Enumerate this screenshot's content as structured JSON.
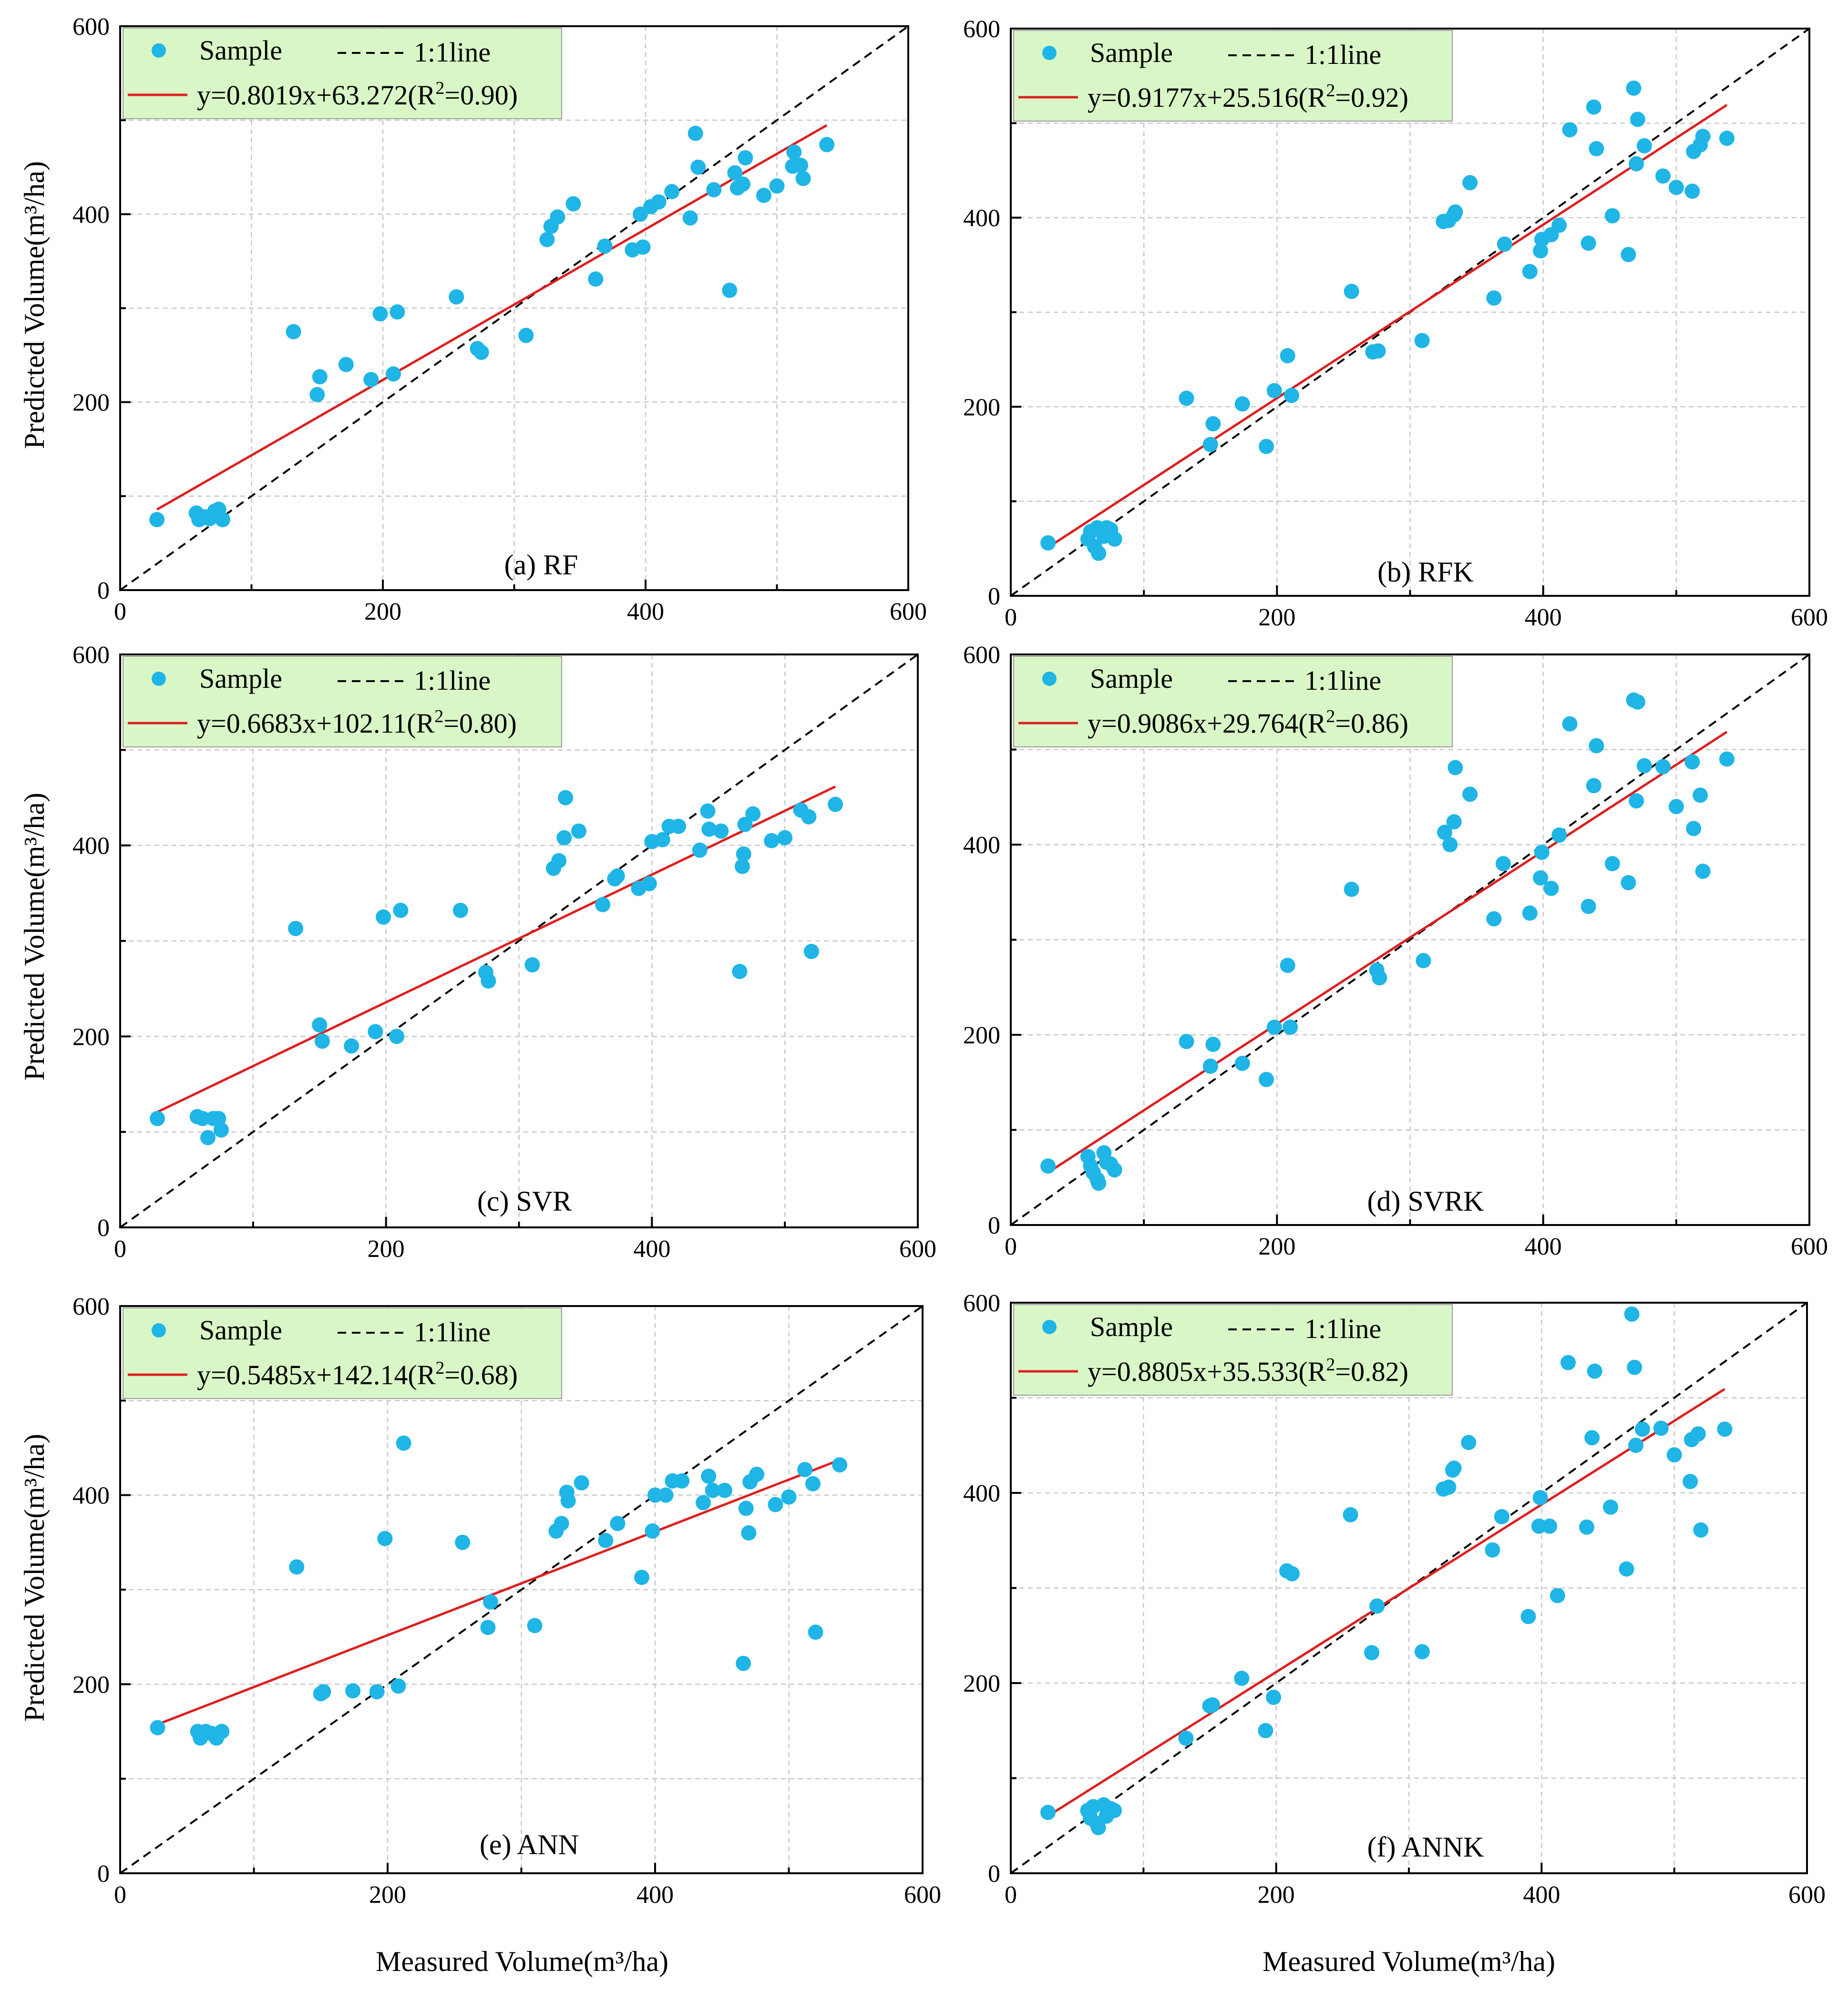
{
  "figure": {
    "x_axis_title": "Measured Volume(m³/ha)",
    "y_axis_title": "Predicted Volume(m³/ha)"
  },
  "colors": {
    "points": "#1fb5e6",
    "fit_line": "#dd1f1f",
    "legend_bg": "#d9f7c6"
  },
  "chart_data": [
    {
      "type": "scatter",
      "title": "(a) RF",
      "legend": {
        "sample": "Sample",
        "one_to_one": "1:1line",
        "fit_eq": "y=0.8019x+63.272(R",
        "r2": "=0.90)"
      },
      "xlim": [
        0,
        600
      ],
      "ylim": [
        0,
        600
      ],
      "x_ticks": [
        "0",
        "200",
        "400",
        "600"
      ],
      "y_ticks": [
        "0",
        "200",
        "400",
        "600"
      ],
      "fit": {
        "slope": 0.8019,
        "intercept": 63.272,
        "x_range": [
          28,
          538
        ]
      },
      "points": [
        [
          28,
          75
        ],
        [
          58,
          82
        ],
        [
          60,
          75
        ],
        [
          64,
          78
        ],
        [
          68,
          76
        ],
        [
          72,
          84
        ],
        [
          75,
          86
        ],
        [
          78,
          75
        ],
        [
          132,
          275
        ],
        [
          150,
          208
        ],
        [
          152,
          227
        ],
        [
          172,
          240
        ],
        [
          191,
          224
        ],
        [
          198,
          294
        ],
        [
          208,
          230
        ],
        [
          211,
          296
        ],
        [
          256,
          312
        ],
        [
          272,
          257
        ],
        [
          275,
          253
        ],
        [
          309,
          271
        ],
        [
          325,
          373
        ],
        [
          328,
          387
        ],
        [
          333,
          397
        ],
        [
          345,
          411
        ],
        [
          362,
          331
        ],
        [
          369,
          366
        ],
        [
          390,
          362
        ],
        [
          396,
          400
        ],
        [
          398,
          365
        ],
        [
          404,
          408
        ],
        [
          410,
          413
        ],
        [
          420,
          424
        ],
        [
          434,
          396
        ],
        [
          438,
          486
        ],
        [
          440,
          450
        ],
        [
          452,
          426
        ],
        [
          464,
          319
        ],
        [
          468,
          444
        ],
        [
          470,
          428
        ],
        [
          474,
          432
        ],
        [
          476,
          460
        ],
        [
          490,
          420
        ],
        [
          500,
          430
        ],
        [
          512,
          451
        ],
        [
          513,
          466
        ],
        [
          518,
          452
        ],
        [
          520,
          438
        ],
        [
          538,
          474
        ]
      ]
    },
    {
      "type": "scatter",
      "title": "(b) RFK",
      "legend": {
        "sample": "Sample",
        "one_to_one": "1:1line",
        "fit_eq": "y=0.9177x+25.516(R",
        "r2": "=0.92)"
      },
      "xlim": [
        0,
        600
      ],
      "ylim": [
        0,
        600
      ],
      "x_ticks": [
        "0",
        "200",
        "400",
        "600"
      ],
      "y_ticks": [
        "0",
        "200",
        "400",
        "600"
      ],
      "fit": {
        "slope": 0.9177,
        "intercept": 25.516,
        "x_range": [
          28,
          538
        ]
      },
      "points": [
        [
          28,
          56
        ],
        [
          58,
          60
        ],
        [
          60,
          68
        ],
        [
          63,
          52
        ],
        [
          65,
          72
        ],
        [
          66,
          45
        ],
        [
          70,
          63
        ],
        [
          72,
          72
        ],
        [
          75,
          70
        ],
        [
          78,
          60
        ],
        [
          132,
          209
        ],
        [
          150,
          160
        ],
        [
          152,
          182
        ],
        [
          174,
          203
        ],
        [
          192,
          158
        ],
        [
          198,
          217
        ],
        [
          208,
          254
        ],
        [
          211,
          212
        ],
        [
          256,
          322
        ],
        [
          272,
          258
        ],
        [
          276,
          259
        ],
        [
          309,
          270
        ],
        [
          325,
          396
        ],
        [
          329,
          397
        ],
        [
          333,
          403
        ],
        [
          334,
          406
        ],
        [
          345,
          437
        ],
        [
          363,
          315
        ],
        [
          371,
          372
        ],
        [
          390,
          343
        ],
        [
          398,
          365
        ],
        [
          399,
          377
        ],
        [
          406,
          382
        ],
        [
          412,
          392
        ],
        [
          420,
          493
        ],
        [
          434,
          373
        ],
        [
          438,
          517
        ],
        [
          440,
          473
        ],
        [
          452,
          402
        ],
        [
          464,
          361
        ],
        [
          468,
          537
        ],
        [
          470,
          457
        ],
        [
          471,
          504
        ],
        [
          476,
          476
        ],
        [
          490,
          444
        ],
        [
          500,
          432
        ],
        [
          512,
          428
        ],
        [
          513,
          470
        ],
        [
          518,
          477
        ],
        [
          520,
          486
        ],
        [
          538,
          484
        ]
      ]
    },
    {
      "type": "scatter",
      "title": "(c) SVR",
      "legend": {
        "sample": "Sample",
        "one_to_one": "1:1line",
        "fit_eq": "y=0.6683x+102.11(R",
        "r2": "=0.80)"
      },
      "xlim": [
        0,
        600
      ],
      "ylim": [
        0,
        600
      ],
      "x_ticks": [
        "0",
        "200",
        "400",
        "600"
      ],
      "y_ticks": [
        "0",
        "200",
        "400",
        "600"
      ],
      "fit": {
        "slope": 0.6683,
        "intercept": 102.11,
        "x_range": [
          28,
          538
        ]
      },
      "points": [
        [
          28,
          114
        ],
        [
          58,
          116
        ],
        [
          62,
          114
        ],
        [
          66,
          94
        ],
        [
          70,
          114
        ],
        [
          74,
          114
        ],
        [
          76,
          102
        ],
        [
          132,
          313
        ],
        [
          150,
          212
        ],
        [
          152,
          195
        ],
        [
          174,
          190
        ],
        [
          192,
          205
        ],
        [
          198,
          325
        ],
        [
          208,
          200
        ],
        [
          211,
          332
        ],
        [
          256,
          332
        ],
        [
          275,
          267
        ],
        [
          277,
          258
        ],
        [
          310,
          275
        ],
        [
          326,
          376
        ],
        [
          330,
          384
        ],
        [
          334,
          408
        ],
        [
          335,
          450
        ],
        [
          345,
          415
        ],
        [
          363,
          338
        ],
        [
          372,
          365
        ],
        [
          374,
          368
        ],
        [
          390,
          355
        ],
        [
          398,
          360
        ],
        [
          400,
          404
        ],
        [
          408,
          406
        ],
        [
          413,
          420
        ],
        [
          420,
          420
        ],
        [
          436,
          395
        ],
        [
          442,
          436
        ],
        [
          443,
          417
        ],
        [
          452,
          415
        ],
        [
          466,
          268
        ],
        [
          468,
          378
        ],
        [
          469,
          391
        ],
        [
          470,
          422
        ],
        [
          476,
          433
        ],
        [
          490,
          405
        ],
        [
          500,
          408
        ],
        [
          512,
          437
        ],
        [
          518,
          430
        ],
        [
          520,
          289
        ],
        [
          538,
          443
        ]
      ]
    },
    {
      "type": "scatter",
      "title": "(d) SVRK",
      "legend": {
        "sample": "Sample",
        "one_to_one": "1:1line",
        "fit_eq": "y=0.9086x+29.764(R",
        "r2": "=0.86)"
      },
      "xlim": [
        0,
        600
      ],
      "ylim": [
        0,
        600
      ],
      "x_ticks": [
        "0",
        "200",
        "400",
        "600"
      ],
      "y_ticks": [
        "0",
        "200",
        "400",
        "600"
      ],
      "fit": {
        "slope": 0.9086,
        "intercept": 29.764,
        "x_range": [
          28,
          538
        ]
      },
      "points": [
        [
          28,
          62
        ],
        [
          58,
          72
        ],
        [
          60,
          62
        ],
        [
          62,
          55
        ],
        [
          65,
          48
        ],
        [
          66,
          44
        ],
        [
          70,
          76
        ],
        [
          72,
          66
        ],
        [
          75,
          64
        ],
        [
          78,
          58
        ],
        [
          132,
          193
        ],
        [
          150,
          167
        ],
        [
          152,
          190
        ],
        [
          174,
          170
        ],
        [
          192,
          153
        ],
        [
          198,
          208
        ],
        [
          208,
          273
        ],
        [
          210,
          208
        ],
        [
          256,
          353
        ],
        [
          275,
          268
        ],
        [
          277,
          260
        ],
        [
          310,
          278
        ],
        [
          326,
          413
        ],
        [
          330,
          400
        ],
        [
          333,
          424
        ],
        [
          334,
          481
        ],
        [
          345,
          453
        ],
        [
          363,
          322
        ],
        [
          370,
          380
        ],
        [
          390,
          328
        ],
        [
          398,
          365
        ],
        [
          399,
          392
        ],
        [
          406,
          354
        ],
        [
          412,
          410
        ],
        [
          420,
          527
        ],
        [
          434,
          335
        ],
        [
          438,
          462
        ],
        [
          440,
          504
        ],
        [
          452,
          380
        ],
        [
          464,
          360
        ],
        [
          468,
          552
        ],
        [
          470,
          446
        ],
        [
          471,
          550
        ],
        [
          476,
          483
        ],
        [
          490,
          482
        ],
        [
          500,
          440
        ],
        [
          512,
          487
        ],
        [
          513,
          417
        ],
        [
          518,
          452
        ],
        [
          520,
          372
        ],
        [
          538,
          490
        ]
      ]
    },
    {
      "type": "scatter",
      "title": "(e) ANN",
      "legend": {
        "sample": "Sample",
        "one_to_one": "1:1line",
        "fit_eq": "y=0.5485x+142.14(R",
        "r2": "=0.68)"
      },
      "xlim": [
        0,
        600
      ],
      "ylim": [
        0,
        600
      ],
      "x_ticks": [
        "0",
        "200",
        "400",
        "600"
      ],
      "y_ticks": [
        "0",
        "200",
        "400",
        "600"
      ],
      "fit": {
        "slope": 0.5485,
        "intercept": 142.14,
        "x_range": [
          28,
          538
        ]
      },
      "points": [
        [
          28,
          154
        ],
        [
          58,
          150
        ],
        [
          60,
          143
        ],
        [
          64,
          150
        ],
        [
          68,
          148
        ],
        [
          72,
          143
        ],
        [
          76,
          150
        ],
        [
          132,
          324
        ],
        [
          150,
          190
        ],
        [
          152,
          192
        ],
        [
          174,
          193
        ],
        [
          192,
          192
        ],
        [
          198,
          354
        ],
        [
          208,
          198
        ],
        [
          212,
          455
        ],
        [
          256,
          350
        ],
        [
          275,
          260
        ],
        [
          277,
          287
        ],
        [
          310,
          262
        ],
        [
          326,
          362
        ],
        [
          330,
          370
        ],
        [
          334,
          403
        ],
        [
          335,
          394
        ],
        [
          345,
          413
        ],
        [
          363,
          352
        ],
        [
          372,
          370
        ],
        [
          390,
          313
        ],
        [
          398,
          362
        ],
        [
          400,
          400
        ],
        [
          408,
          400
        ],
        [
          413,
          415
        ],
        [
          420,
          415
        ],
        [
          436,
          392
        ],
        [
          440,
          420
        ],
        [
          443,
          405
        ],
        [
          452,
          405
        ],
        [
          466,
          222
        ],
        [
          468,
          386
        ],
        [
          470,
          360
        ],
        [
          471,
          414
        ],
        [
          476,
          422
        ],
        [
          490,
          390
        ],
        [
          500,
          398
        ],
        [
          512,
          427
        ],
        [
          518,
          412
        ],
        [
          520,
          255
        ],
        [
          538,
          432
        ]
      ]
    },
    {
      "type": "scatter",
      "title": "(f) ANNK",
      "legend": {
        "sample": "Sample",
        "one_to_one": "1:1line",
        "fit_eq": "y=0.8805x+35.533(R",
        "r2": "=0.82)"
      },
      "xlim": [
        0,
        600
      ],
      "ylim": [
        0,
        600
      ],
      "x_ticks": [
        "0",
        "200",
        "400",
        "600"
      ],
      "y_ticks": [
        "0",
        "200",
        "400",
        "600"
      ],
      "fit": {
        "slope": 0.8805,
        "intercept": 35.533,
        "x_range": [
          28,
          538
        ]
      },
      "points": [
        [
          28,
          64
        ],
        [
          58,
          66
        ],
        [
          60,
          58
        ],
        [
          62,
          70
        ],
        [
          65,
          52
        ],
        [
          66,
          48
        ],
        [
          70,
          72
        ],
        [
          72,
          60
        ],
        [
          75,
          68
        ],
        [
          78,
          66
        ],
        [
          132,
          142
        ],
        [
          150,
          176
        ],
        [
          152,
          177
        ],
        [
          174,
          205
        ],
        [
          192,
          150
        ],
        [
          198,
          185
        ],
        [
          208,
          318
        ],
        [
          212,
          315
        ],
        [
          256,
          377
        ],
        [
          272,
          232
        ],
        [
          276,
          281
        ],
        [
          310,
          233
        ],
        [
          326,
          404
        ],
        [
          330,
          406
        ],
        [
          333,
          424
        ],
        [
          334,
          426
        ],
        [
          345,
          453
        ],
        [
          363,
          340
        ],
        [
          370,
          375
        ],
        [
          390,
          270
        ],
        [
          398,
          365
        ],
        [
          399,
          395
        ],
        [
          406,
          365
        ],
        [
          412,
          292
        ],
        [
          420,
          537
        ],
        [
          434,
          364
        ],
        [
          438,
          458
        ],
        [
          440,
          528
        ],
        [
          452,
          385
        ],
        [
          464,
          320
        ],
        [
          468,
          588
        ],
        [
          470,
          532
        ],
        [
          471,
          450
        ],
        [
          476,
          467
        ],
        [
          490,
          468
        ],
        [
          500,
          440
        ],
        [
          512,
          412
        ],
        [
          513,
          456
        ],
        [
          518,
          462
        ],
        [
          520,
          361
        ],
        [
          538,
          467
        ]
      ]
    }
  ]
}
